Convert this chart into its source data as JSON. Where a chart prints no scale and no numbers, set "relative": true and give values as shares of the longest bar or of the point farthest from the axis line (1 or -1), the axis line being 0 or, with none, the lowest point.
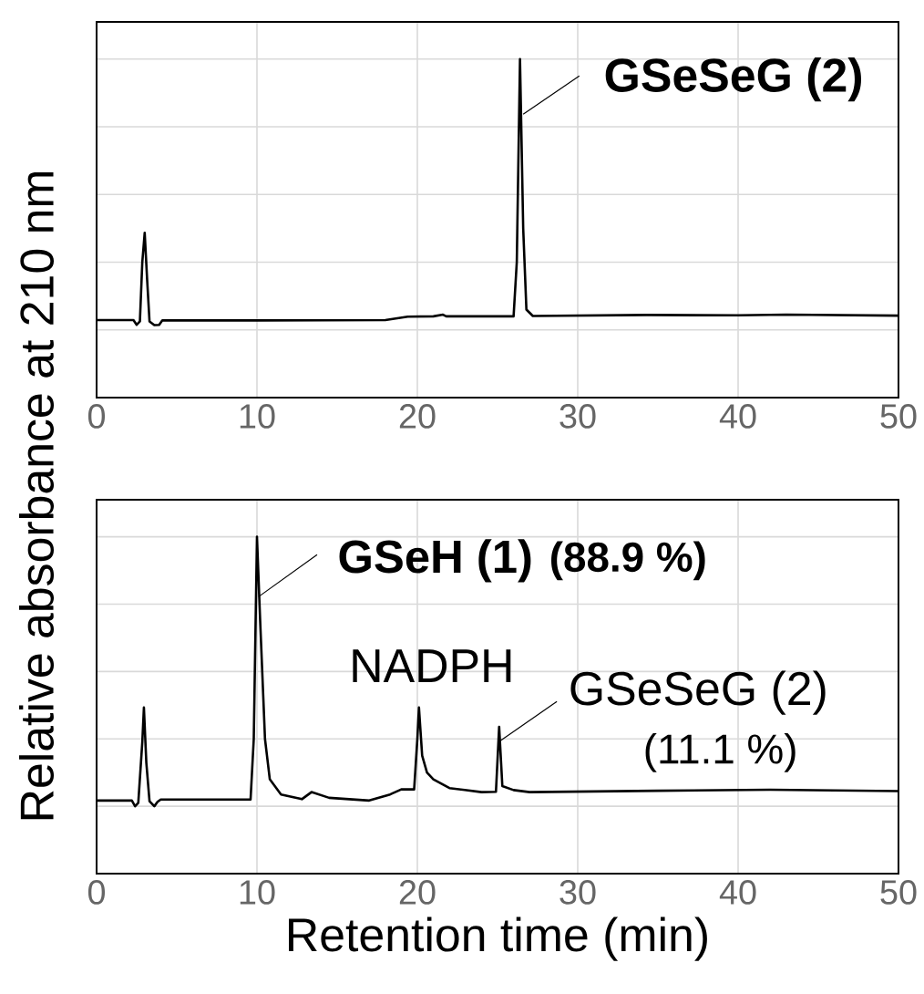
{
  "chart_data": [
    {
      "type": "line",
      "relative": true,
      "xlim": [
        0,
        50
      ],
      "xticks": [
        0,
        10,
        20,
        30,
        40,
        50
      ],
      "grid": true,
      "tick_labels": "x",
      "series": [
        {
          "color": "#000000",
          "x": [
            0,
            2.3,
            2.5,
            2.7,
            2.85,
            3.0,
            3.15,
            3.3,
            3.6,
            3.9,
            4.1,
            10,
            18,
            19.4,
            21,
            21.6,
            21.8,
            26,
            26.2,
            26.4,
            26.6,
            26.8,
            27.2,
            34.3,
            40,
            43,
            50
          ],
          "values": [
            0.229,
            0.229,
            0.215,
            0.225,
            0.4,
            0.487,
            0.35,
            0.225,
            0.214,
            0.215,
            0.228,
            0.228,
            0.229,
            0.239,
            0.24,
            0.245,
            0.24,
            0.24,
            0.4,
            1,
            0.5,
            0.26,
            0.241,
            0.244,
            0.243,
            0.245,
            0.242
          ]
        }
      ],
      "annotations": [
        {
          "text": "GSeSeG (2)",
          "x": 26.4,
          "y": 1
        }
      ]
    },
    {
      "type": "line",
      "relative": true,
      "xlim": [
        0,
        50
      ],
      "xticks": [
        0,
        10,
        20,
        30,
        40,
        50
      ],
      "grid": true,
      "tick_labels": "x",
      "xlabel": "Retention time (min)",
      "ylabel": "Relative absorbance at 210 nm",
      "series": [
        {
          "color": "#000000",
          "x": [
            0,
            2.2,
            2.4,
            2.6,
            2.85,
            2.95,
            3.1,
            3.3,
            3.6,
            3.8,
            4,
            9.6,
            9.8,
            10,
            10.2,
            10.5,
            10.8,
            11.5,
            12.8,
            13.4,
            14.5,
            17,
            18.3,
            19,
            19.8,
            20.0,
            20.1,
            20.3,
            20.6,
            21,
            22,
            24,
            24.9,
            25.1,
            25.3,
            26,
            27,
            35,
            42,
            50
          ],
          "values": [
            0.217,
            0.217,
            0.2,
            0.21,
            0.39,
            0.493,
            0.33,
            0.215,
            0.2,
            0.213,
            0.22,
            0.22,
            0.4,
            1,
            0.75,
            0.4,
            0.28,
            0.235,
            0.221,
            0.242,
            0.225,
            0.217,
            0.235,
            0.25,
            0.25,
            0.4,
            0.493,
            0.35,
            0.3,
            0.28,
            0.254,
            0.242,
            0.243,
            0.436,
            0.26,
            0.248,
            0.242,
            0.246,
            0.249,
            0.245
          ]
        }
      ],
      "annotations": [
        {
          "text": "GSeH (1)",
          "x": 10,
          "y": 1
        },
        "(88.9 %)",
        {
          "text": "NADPH",
          "x": 20.1,
          "y": 0.493
        },
        {
          "text": "GSeSeG (2)",
          "x": 25.1,
          "y": 0.436
        },
        "(11.1 %)"
      ]
    }
  ]
}
